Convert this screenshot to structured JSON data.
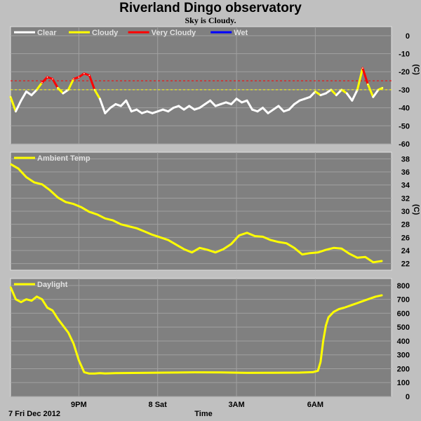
{
  "header": {
    "title": "Riverland Dingo observatory",
    "subtitle": "Sky is Cloudy."
  },
  "footer": {
    "date_label": "7 Fri Dec 2012",
    "time_label": "Time"
  },
  "colors": {
    "panel_bg": "#808080",
    "frame_bg": "#c0c0c0",
    "grid": "#a0a0a0",
    "clear": "#ffffff",
    "cloudy": "#ffff00",
    "very_cloudy": "#ff0000",
    "wet": "#0000ff"
  },
  "chart_data": [
    {
      "type": "line",
      "name": "sky",
      "unit_label": "(C)",
      "ylim": [
        -60,
        5
      ],
      "yticks": [
        0,
        -10,
        -20,
        -30,
        -40,
        -50,
        -60
      ],
      "legend": [
        {
          "label": "Clear",
          "color": "#ffffff"
        },
        {
          "label": "Cloudy",
          "color": "#ffff00"
        },
        {
          "label": "Very Cloudy",
          "color": "#ff0000"
        },
        {
          "label": "Wet",
          "color": "#0000ff"
        }
      ],
      "thresholds": [
        {
          "value": -25,
          "color": "#ff0000"
        },
        {
          "value": -30,
          "color": "#ffff00"
        }
      ],
      "x_hours": [
        0,
        0.2,
        0.4,
        0.6,
        0.8,
        1.0,
        1.2,
        1.4,
        1.6,
        1.8,
        2.0,
        2.2,
        2.4,
        2.6,
        2.8,
        3.0,
        3.2,
        3.4,
        3.6,
        3.8,
        4.0,
        4.2,
        4.4,
        4.6,
        4.8,
        5.0,
        5.2,
        5.4,
        5.6,
        5.8,
        6.0,
        6.2,
        6.4,
        6.6,
        6.8,
        7.0,
        7.2,
        7.4,
        7.6,
        7.8,
        8.0,
        8.2,
        8.4,
        8.6,
        8.8,
        9.0,
        9.2,
        9.4,
        9.6,
        9.8,
        10.0,
        10.2,
        10.4,
        10.6,
        10.8,
        11.0,
        11.2,
        11.4,
        11.6,
        11.8,
        12.0,
        12.2,
        12.4,
        12.6,
        12.8,
        13.0,
        13.2,
        13.4,
        13.6,
        13.8,
        14.0,
        14.15
      ],
      "values": [
        -34,
        -42,
        -36,
        -31,
        -33,
        -30,
        -26,
        -23,
        -24,
        -29,
        -32,
        -30,
        -24,
        -23,
        -21,
        -22,
        -30,
        -35,
        -43,
        -40,
        -38,
        -39,
        -36,
        -42,
        -41,
        -43,
        -42,
        -43,
        -42,
        -41,
        -42,
        -40,
        -39,
        -41,
        -39,
        -41,
        -40,
        -38,
        -36,
        -39,
        -38,
        -37,
        -38,
        -35,
        -37,
        -36,
        -41,
        -42,
        -40,
        -43,
        -41,
        -39,
        -42,
        -41,
        -38,
        -36,
        -35,
        -34,
        -31,
        -33,
        -32,
        -30,
        -33,
        -30,
        -32,
        -36,
        -30,
        -18,
        -27,
        -34,
        -30,
        -29
      ],
      "categories_color": [
        "cloudy",
        "clear",
        "clear",
        "clear",
        "clear",
        "cloudy",
        "very_cloudy",
        "very_cloudy",
        "very_cloudy",
        "cloudy",
        "clear",
        "cloudy",
        "very_cloudy",
        "very_cloudy",
        "very_cloudy",
        "very_cloudy",
        "cloudy",
        "clear",
        "clear",
        "clear",
        "clear",
        "clear",
        "clear",
        "clear",
        "clear",
        "clear",
        "clear",
        "clear",
        "clear",
        "clear",
        "clear",
        "clear",
        "clear",
        "clear",
        "clear",
        "clear",
        "clear",
        "clear",
        "clear",
        "clear",
        "clear",
        "clear",
        "clear",
        "clear",
        "clear",
        "clear",
        "clear",
        "clear",
        "clear",
        "clear",
        "clear",
        "clear",
        "clear",
        "clear",
        "clear",
        "clear",
        "clear",
        "clear",
        "cloudy",
        "clear",
        "clear",
        "cloudy",
        "clear",
        "cloudy",
        "clear",
        "clear",
        "cloudy",
        "very_cloudy",
        "cloudy",
        "clear",
        "cloudy",
        "cloudy"
      ]
    },
    {
      "type": "line",
      "name": "ambient",
      "unit_label": "(C)",
      "ylim": [
        21,
        39
      ],
      "yticks": [
        38,
        36,
        34,
        32,
        30,
        28,
        26,
        24,
        22
      ],
      "legend": [
        {
          "label": "Ambient Temp",
          "color": "#ffff00"
        }
      ],
      "series_color": "#ffff00",
      "x_hours": [
        0,
        0.3,
        0.6,
        0.9,
        1.2,
        1.5,
        1.8,
        2.1,
        2.4,
        2.7,
        3.0,
        3.3,
        3.6,
        3.9,
        4.2,
        4.5,
        4.8,
        5.1,
        5.4,
        5.7,
        6.0,
        6.3,
        6.6,
        6.9,
        7.2,
        7.5,
        7.8,
        8.1,
        8.4,
        8.7,
        9.0,
        9.3,
        9.6,
        9.9,
        10.2,
        10.5,
        10.8,
        11.1,
        11.4,
        11.7,
        12.0,
        12.3,
        12.6,
        12.9,
        13.2,
        13.5,
        13.8,
        14.15
      ],
      "values": [
        37.2,
        36.5,
        35.2,
        34.4,
        34.1,
        33.2,
        32.1,
        31.4,
        31.1,
        30.6,
        29.9,
        29.5,
        28.9,
        28.6,
        28.0,
        27.7,
        27.4,
        26.9,
        26.4,
        26.0,
        25.6,
        24.9,
        24.2,
        23.7,
        24.4,
        24.1,
        23.7,
        24.2,
        25.0,
        26.3,
        26.7,
        26.2,
        26.1,
        25.6,
        25.3,
        25.1,
        24.4,
        23.4,
        23.6,
        23.7,
        24.1,
        24.4,
        24.3,
        23.5,
        22.9,
        23.0,
        22.2,
        22.4
      ]
    },
    {
      "type": "line",
      "name": "daylight",
      "ylim": [
        0,
        850
      ],
      "yticks": [
        800,
        700,
        600,
        500,
        400,
        300,
        200,
        100,
        0
      ],
      "legend": [
        {
          "label": "Daylight",
          "color": "#ffff00"
        }
      ],
      "series_color": "#ffff00",
      "x_hours": [
        0,
        0.2,
        0.4,
        0.6,
        0.8,
        1.0,
        1.2,
        1.4,
        1.6,
        1.8,
        2.0,
        2.2,
        2.4,
        2.6,
        2.8,
        3.0,
        3.2,
        3.4,
        3.6,
        3.8,
        4.0,
        5.0,
        6.0,
        7.0,
        8.0,
        9.0,
        10.0,
        11.0,
        11.5,
        11.7,
        11.8,
        11.9,
        12.0,
        12.1,
        12.3,
        12.5,
        12.7,
        13.0,
        13.3,
        13.6,
        13.9,
        14.15
      ],
      "values": [
        790,
        700,
        680,
        700,
        690,
        720,
        700,
        640,
        620,
        560,
        510,
        460,
        380,
        260,
        175,
        165,
        165,
        168,
        166,
        167,
        168,
        170,
        172,
        174,
        173,
        170,
        171,
        172,
        175,
        185,
        250,
        400,
        510,
        570,
        610,
        630,
        640,
        660,
        680,
        700,
        720,
        730
      ]
    }
  ],
  "x_axis": {
    "ticks": [
      {
        "label": "9PM",
        "hour": 2.6
      },
      {
        "label": "8 Sat",
        "hour": 5.6
      },
      {
        "label": "3AM",
        "hour": 8.6
      },
      {
        "label": "6AM",
        "hour": 11.6
      }
    ],
    "range_hours": [
      0,
      14.5
    ]
  }
}
